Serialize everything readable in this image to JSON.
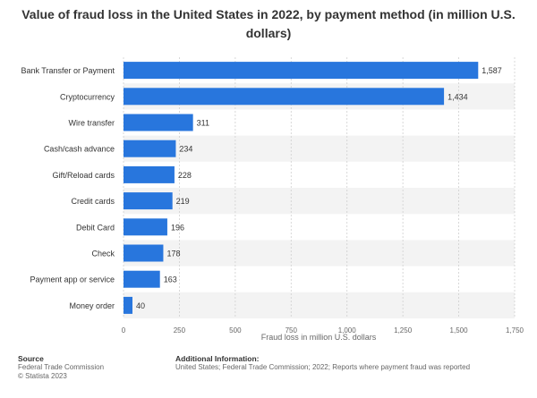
{
  "chart_data": {
    "type": "bar",
    "orientation": "horizontal",
    "title": "Value of fraud loss in the United States in 2022, by payment method (in million U.S. dollars)",
    "categories": [
      "Bank Transfer or Payment",
      "Cryptocurrency",
      "Wire transfer",
      "Cash/cash advance",
      "Gift/Reload cards",
      "Credit cards",
      "Debit Card",
      "Check",
      "Payment app or service",
      "Money order"
    ],
    "values": [
      1587,
      1434,
      311,
      234,
      228,
      219,
      196,
      178,
      163,
      40
    ],
    "value_labels": [
      "1,587",
      "1,434",
      "311",
      "234",
      "228",
      "219",
      "196",
      "178",
      "163",
      "40"
    ],
    "xlabel": "Fraud loss in million U.S. dollars",
    "ylabel": "",
    "xlim": [
      0,
      1750
    ],
    "x_ticks": [
      0,
      250,
      500,
      750,
      1000,
      1250,
      1500,
      1750
    ],
    "x_tick_labels": [
      "0",
      "250",
      "500",
      "750",
      "1,000",
      "1,250",
      "1,500",
      "1,750"
    ],
    "grid": "vertical",
    "bar_color": "#2876dd",
    "band_color": "#f3f3f3"
  },
  "footer": {
    "source_heading": "Source",
    "source_lines": [
      "Federal Trade Commission",
      "© Statista 2023"
    ],
    "info_heading": "Additional Information:",
    "info_text": "United States; Federal Trade Commission; 2022; Reports where payment fraud was reported"
  }
}
